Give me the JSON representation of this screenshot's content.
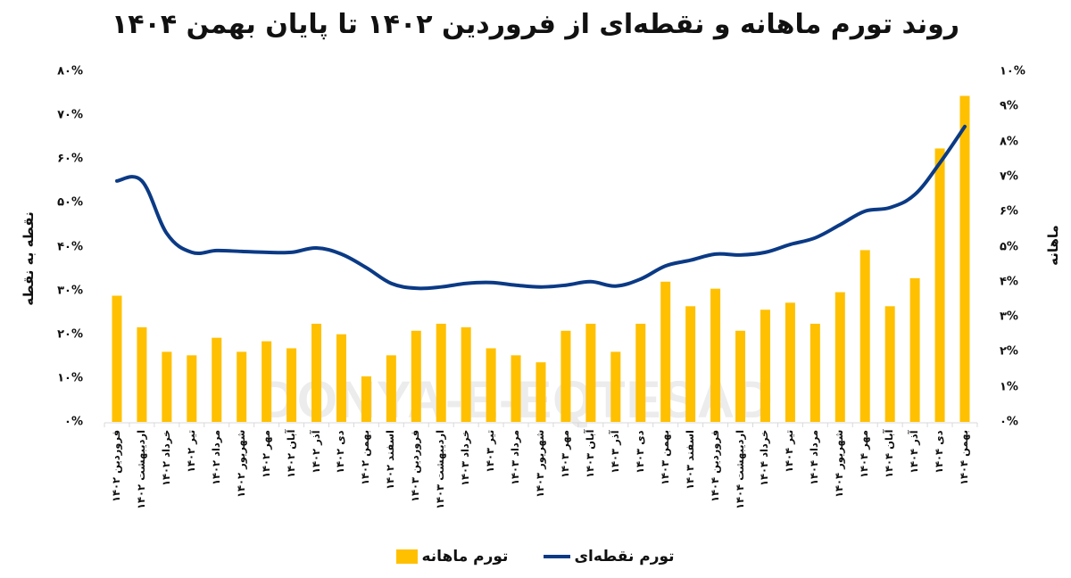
{
  "title": "روند تورم ماهانه و نقطه‌ای از فروردین ۱۴۰۲ تا پایان بهمن ۱۴۰۴",
  "axes": {
    "left_title": "نقطه به نقطه",
    "right_title": "ماهانه",
    "left_ticks": [
      "۸۰%",
      "۷۰%",
      "۶۰%",
      "۵۰%",
      "۴۰%",
      "۳۰%",
      "۲۰%",
      "۱۰%",
      "۰%"
    ],
    "right_ticks": [
      "۱۰%",
      "۹%",
      "۸%",
      "۷%",
      "۶%",
      "۵%",
      "۴%",
      "۳%",
      "۲%",
      "۱%",
      "۰%"
    ]
  },
  "legend": {
    "line_label": "تورم نقطه‌ای",
    "bar_label": "تورم ماهانه"
  },
  "watermark": "DONYA-E-EQTESAD",
  "colors": {
    "bar": "#ffc000",
    "line": "#0b3a85",
    "axis": "#d9d9d9"
  },
  "chart_data": {
    "type": "bar+line",
    "title": "روند تورم ماهانه و نقطه‌ای از فروردین ۱۴۰۲ تا پایان بهمن ۱۴۰۴",
    "xlabel": "",
    "ylabel_left": "نقطه به نقطه",
    "ylabel_right": "ماهانه",
    "ylim_left": [
      0,
      80
    ],
    "ylim_right": [
      0,
      10
    ],
    "grid": false,
    "legend_position": "bottom",
    "categories": [
      "فروردین ۱۴۰۲",
      "اردیبهشت ۱۴۰۲",
      "خرداد ۱۴۰۲",
      "تیر ۱۴۰۲",
      "مرداد ۱۴۰۲",
      "شهریور ۱۴۰۲",
      "مهر ۱۴۰۲",
      "آبان ۱۴۰۲",
      "آذر ۱۴۰۲",
      "دی ۱۴۰۲",
      "بهمن ۱۴۰۲",
      "اسفند ۱۴۰۲",
      "فروردین ۱۴۰۳",
      "اردیبهشت ۱۴۰۳",
      "خرداد ۱۴۰۳",
      "تیر ۱۴۰۳",
      "مرداد ۱۴۰۳",
      "شهریور ۱۴۰۳",
      "مهر ۱۴۰۳",
      "آبان ۱۴۰۳",
      "آذر ۱۴۰۳",
      "دی ۱۴۰۳",
      "بهمن ۱۴۰۳",
      "اسفند ۱۴۰۳",
      "فروردین ۱۴۰۴",
      "اردیبهشت ۱۴۰۴",
      "خرداد ۱۴۰۴",
      "تیر ۱۴۰۴",
      "مرداد ۱۴۰۴",
      "شهریور ۱۴۰۴",
      "مهر ۱۴۰۴",
      "آبان ۱۴۰۴",
      "آذر ۱۴۰۴",
      "دی ۱۴۰۴",
      "بهمن ۱۴۰۴"
    ],
    "series": [
      {
        "name": "تورم ماهانه",
        "type": "bar",
        "axis": "right",
        "values": [
          3.6,
          2.7,
          2.0,
          1.9,
          2.4,
          2.0,
          2.3,
          2.1,
          2.8,
          2.5,
          1.3,
          1.9,
          2.6,
          2.8,
          2.7,
          2.1,
          1.9,
          1.7,
          2.6,
          2.8,
          2.0,
          2.8,
          4.0,
          3.3,
          3.8,
          2.6,
          3.2,
          3.4,
          2.8,
          3.7,
          4.9,
          3.3,
          4.1,
          7.8,
          9.3
        ]
      },
      {
        "name": "تورم نقطه‌ای",
        "type": "line",
        "axis": "left",
        "values": [
          55.0,
          55.0,
          43.0,
          38.7,
          39.1,
          38.9,
          38.7,
          38.7,
          39.7,
          38.3,
          35.2,
          31.6,
          30.5,
          30.8,
          31.6,
          31.8,
          31.2,
          30.8,
          31.2,
          32.0,
          31.0,
          32.6,
          35.6,
          36.9,
          38.3,
          38.1,
          38.7,
          40.5,
          42.0,
          45.0,
          48.1,
          48.9,
          51.9,
          59.1,
          67.4
        ]
      }
    ]
  }
}
